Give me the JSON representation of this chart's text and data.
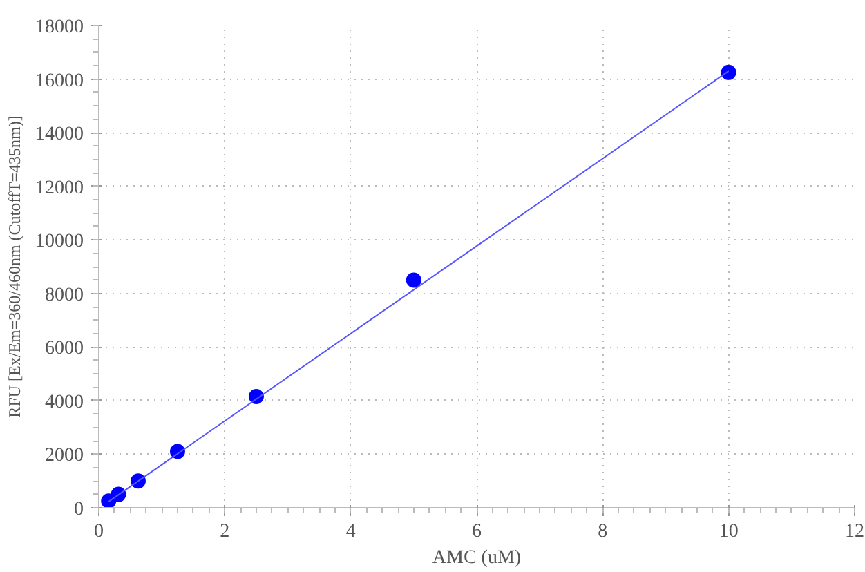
{
  "chart_data": {
    "type": "scatter",
    "xlabel": "AMC (uM)",
    "ylabel": "RFU [Ex/Em=360/460nm (CutoffT=435nm)]",
    "series": [
      {
        "marker": "circle",
        "color": "#0000ff",
        "x": [
          0.156,
          0.3125,
          0.625,
          1.25,
          2.5,
          5,
          10
        ],
        "values": [
          250,
          500,
          1000,
          2100,
          4150,
          8500,
          16250
        ]
      },
      {
        "type": "line",
        "marker": "none",
        "color": "#5555ff",
        "x": [
          0.156,
          10
        ],
        "values": [
          230,
          16300
        ]
      }
    ],
    "xlim": [
      0,
      12
    ],
    "ylim": [
      0,
      18000
    ],
    "xticks": [
      0,
      2,
      4,
      6,
      8,
      10,
      12
    ],
    "yticks": [
      0,
      2000,
      4000,
      6000,
      8000,
      10000,
      12000,
      14000,
      16000,
      18000
    ],
    "grid": true
  }
}
